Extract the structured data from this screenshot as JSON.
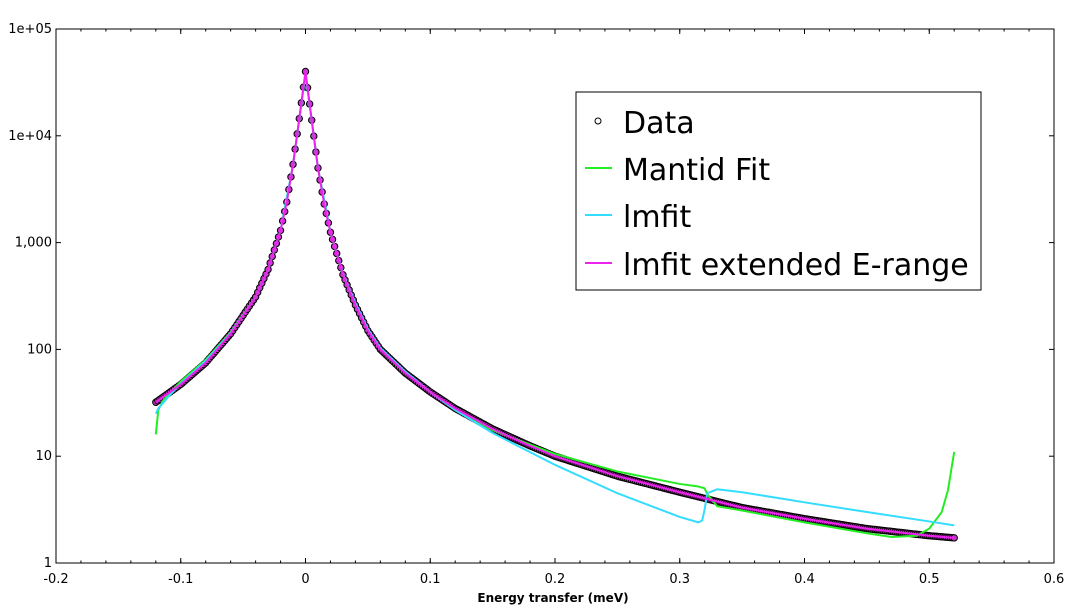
{
  "chart_data": {
    "type": "line",
    "title": "",
    "xlabel": "Energy transfer (meV)",
    "ylabel": "",
    "xlim": [
      -0.2,
      0.6
    ],
    "ylim": [
      1,
      100000
    ],
    "yscale": "log",
    "grid": false,
    "legend_position": "top-right",
    "x_ticks": [
      -0.2,
      -0.1,
      0,
      0.1,
      0.2,
      0.3,
      0.4,
      0.5,
      0.6
    ],
    "x_tick_labels": [
      "-0.2",
      "-0.1",
      "0",
      "0.1",
      "0.2",
      "0.3",
      "0.4",
      "0.5",
      "0.6"
    ],
    "y_ticks": [
      1,
      10,
      100,
      1000,
      10000,
      100000
    ],
    "y_tick_labels": [
      "1",
      "10",
      "100",
      "1,000",
      "1e+04",
      "1e+05"
    ],
    "series": [
      {
        "name": "Data",
        "style": "markers",
        "color": "#000000",
        "fill": "#cc33cc",
        "x": [
          -0.12,
          -0.1,
          -0.08,
          -0.06,
          -0.04,
          -0.03,
          -0.02,
          -0.015,
          -0.01,
          -0.005,
          0,
          0.005,
          0.01,
          0.015,
          0.02,
          0.03,
          0.04,
          0.05,
          0.06,
          0.08,
          0.1,
          0.12,
          0.15,
          0.18,
          0.2,
          0.25,
          0.3,
          0.35,
          0.4,
          0.45,
          0.5,
          0.52
        ],
        "y": [
          32,
          47,
          75,
          140,
          310,
          560,
          1300,
          2400,
          5400,
          14500,
          40000,
          14000,
          5000,
          2300,
          1250,
          500,
          260,
          150,
          100,
          60,
          40,
          28,
          18,
          12.5,
          10,
          6.5,
          4.6,
          3.3,
          2.6,
          2.1,
          1.8,
          1.72
        ]
      },
      {
        "name": "Mantid Fit",
        "style": "line",
        "color": "#22ee22",
        "x": [
          -0.12,
          -0.118,
          -0.115,
          -0.11,
          -0.1,
          -0.08,
          -0.06,
          -0.04,
          -0.03,
          -0.02,
          -0.01,
          0,
          0.01,
          0.02,
          0.03,
          0.04,
          0.05,
          0.06,
          0.08,
          0.1,
          0.12,
          0.15,
          0.2,
          0.25,
          0.3,
          0.315,
          0.32,
          0.322,
          0.33,
          0.35,
          0.4,
          0.45,
          0.47,
          0.49,
          0.5,
          0.51,
          0.515,
          0.52
        ],
        "y": [
          16,
          27,
          32,
          38,
          50,
          80,
          145,
          310,
          560,
          1300,
          5300,
          38000,
          5000,
          1250,
          500,
          260,
          150,
          100,
          60,
          40,
          27,
          17.5,
          10.5,
          7.2,
          5.5,
          5.2,
          5.0,
          4.4,
          3.4,
          3.1,
          2.4,
          1.9,
          1.75,
          1.8,
          2.1,
          3.0,
          4.8,
          11
        ]
      },
      {
        "name": "lmfit",
        "style": "line",
        "color": "#33ddff",
        "x": [
          -0.12,
          -0.118,
          -0.11,
          -0.1,
          -0.08,
          -0.06,
          -0.04,
          -0.03,
          -0.02,
          -0.01,
          0,
          0.01,
          0.02,
          0.03,
          0.04,
          0.05,
          0.06,
          0.08,
          0.1,
          0.12,
          0.15,
          0.2,
          0.25,
          0.3,
          0.315,
          0.318,
          0.32,
          0.322,
          0.33,
          0.35,
          0.4,
          0.45,
          0.5,
          0.52
        ],
        "y": [
          25,
          28,
          36,
          48,
          78,
          142,
          310,
          560,
          1300,
          5300,
          38000,
          5000,
          1250,
          510,
          270,
          155,
          103,
          62,
          40,
          27,
          16.5,
          8.3,
          4.5,
          2.7,
          2.4,
          2.5,
          3.2,
          4.5,
          4.9,
          4.6,
          3.7,
          3.0,
          2.45,
          2.25
        ]
      },
      {
        "name": "lmfit extended E-range",
        "style": "line",
        "color": "#ee22ee",
        "x": [
          -0.12,
          -0.1,
          -0.08,
          -0.06,
          -0.04,
          -0.03,
          -0.02,
          -0.015,
          -0.01,
          -0.005,
          0,
          0.005,
          0.01,
          0.015,
          0.02,
          0.03,
          0.04,
          0.05,
          0.06,
          0.08,
          0.1,
          0.12,
          0.15,
          0.18,
          0.2,
          0.25,
          0.3,
          0.35,
          0.4,
          0.45,
          0.5,
          0.52
        ],
        "y": [
          32,
          47,
          75,
          140,
          310,
          560,
          1300,
          2400,
          5400,
          14500,
          40000,
          14000,
          5000,
          2300,
          1250,
          500,
          260,
          150,
          100,
          60,
          40,
          28,
          18,
          12.5,
          10,
          6.5,
          4.6,
          3.3,
          2.6,
          2.1,
          1.8,
          1.72
        ]
      }
    ]
  }
}
